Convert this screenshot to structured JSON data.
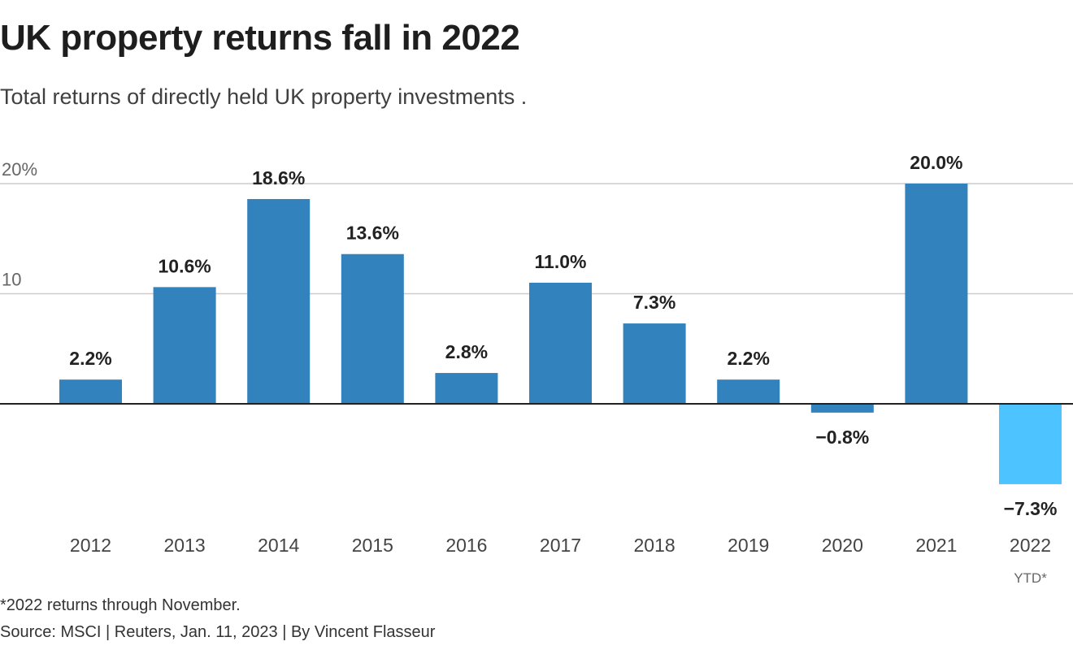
{
  "header": {
    "title": "UK property returns fall in 2022",
    "subtitle": "Total returns of directly held UK property investments ."
  },
  "footer": {
    "note": "*2022 returns through November.",
    "source": "Source: MSCI | Reuters, Jan. 11, 2023 | By Vincent Flasseur"
  },
  "colors": {
    "bar": "#3182bd",
    "highlight": "#4dc3ff",
    "grid": "#cccccc",
    "zero_line": "#222222"
  },
  "chart_data": {
    "type": "bar",
    "title": "UK property returns fall in 2022",
    "subtitle": "Total returns of directly held UK property investments .",
    "categories": [
      "2012",
      "2013",
      "2014",
      "2015",
      "2016",
      "2017",
      "2018",
      "2019",
      "2020",
      "2021",
      "2022"
    ],
    "category_sublabels": [
      "",
      "",
      "",
      "",
      "",
      "",
      "",
      "",
      "",
      "",
      "YTD*"
    ],
    "values": [
      2.2,
      10.6,
      18.6,
      13.6,
      2.8,
      11.0,
      7.3,
      2.2,
      -0.8,
      20.0,
      -7.3
    ],
    "data_labels": [
      "2.2%",
      "10.6%",
      "18.6%",
      "13.6%",
      "2.8%",
      "11.0%",
      "7.3%",
      "2.2%",
      "−0.8%",
      "20.0%",
      "−7.3%"
    ],
    "highlight_index": 10,
    "yticks": [
      10,
      20
    ],
    "ytick_labels": [
      "10",
      "20%"
    ],
    "ylim": [
      -7.3,
      20
    ],
    "grid": true,
    "xlabel": "",
    "ylabel": ""
  }
}
